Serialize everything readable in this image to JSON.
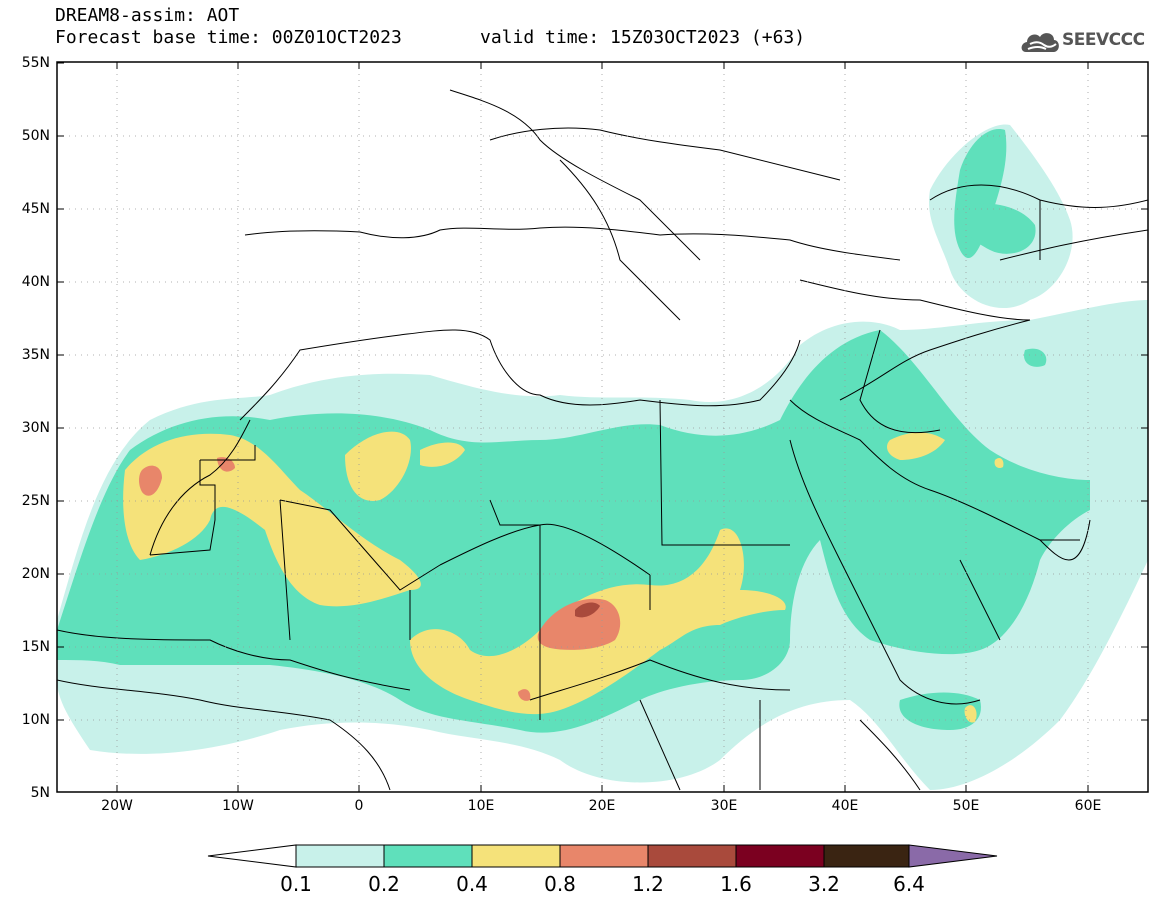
{
  "header": {
    "title": "DREAM8-assim: AOT",
    "base_time": "Forecast base time: 00Z01OCT2023",
    "valid_time": "valid time: 15Z03OCT2023 (+63)",
    "logo_text": "SEEVCCC"
  },
  "map": {
    "lat_labels": [
      "55N",
      "50N",
      "45N",
      "40N",
      "35N",
      "30N",
      "25N",
      "20N",
      "15N",
      "10N",
      "5N"
    ],
    "lon_labels": [
      "20W",
      "10W",
      "0",
      "10E",
      "20E",
      "30E",
      "40E",
      "50E",
      "60E"
    ],
    "extent": {
      "lon_min": -25,
      "lon_max": 65,
      "lat_min": 5,
      "lat_max": 55
    }
  },
  "colorbar": {
    "labels": [
      "0.1",
      "0.2",
      "0.4",
      "0.8",
      "1.2",
      "1.6",
      "3.2",
      "6.4"
    ],
    "colors": [
      "#c8f1ea",
      "#5fe0bb",
      "#f5e27a",
      "#e8866a",
      "#a94a3c",
      "#7b0020",
      "#3a2412",
      "#8a6aa8"
    ]
  },
  "colors": {
    "lvl1": "#c8f1ea",
    "lvl2": "#5fe0bb",
    "lvl3": "#f5e27a",
    "lvl4": "#e8866a",
    "lvl5": "#a94a3c",
    "border": "#000000"
  }
}
